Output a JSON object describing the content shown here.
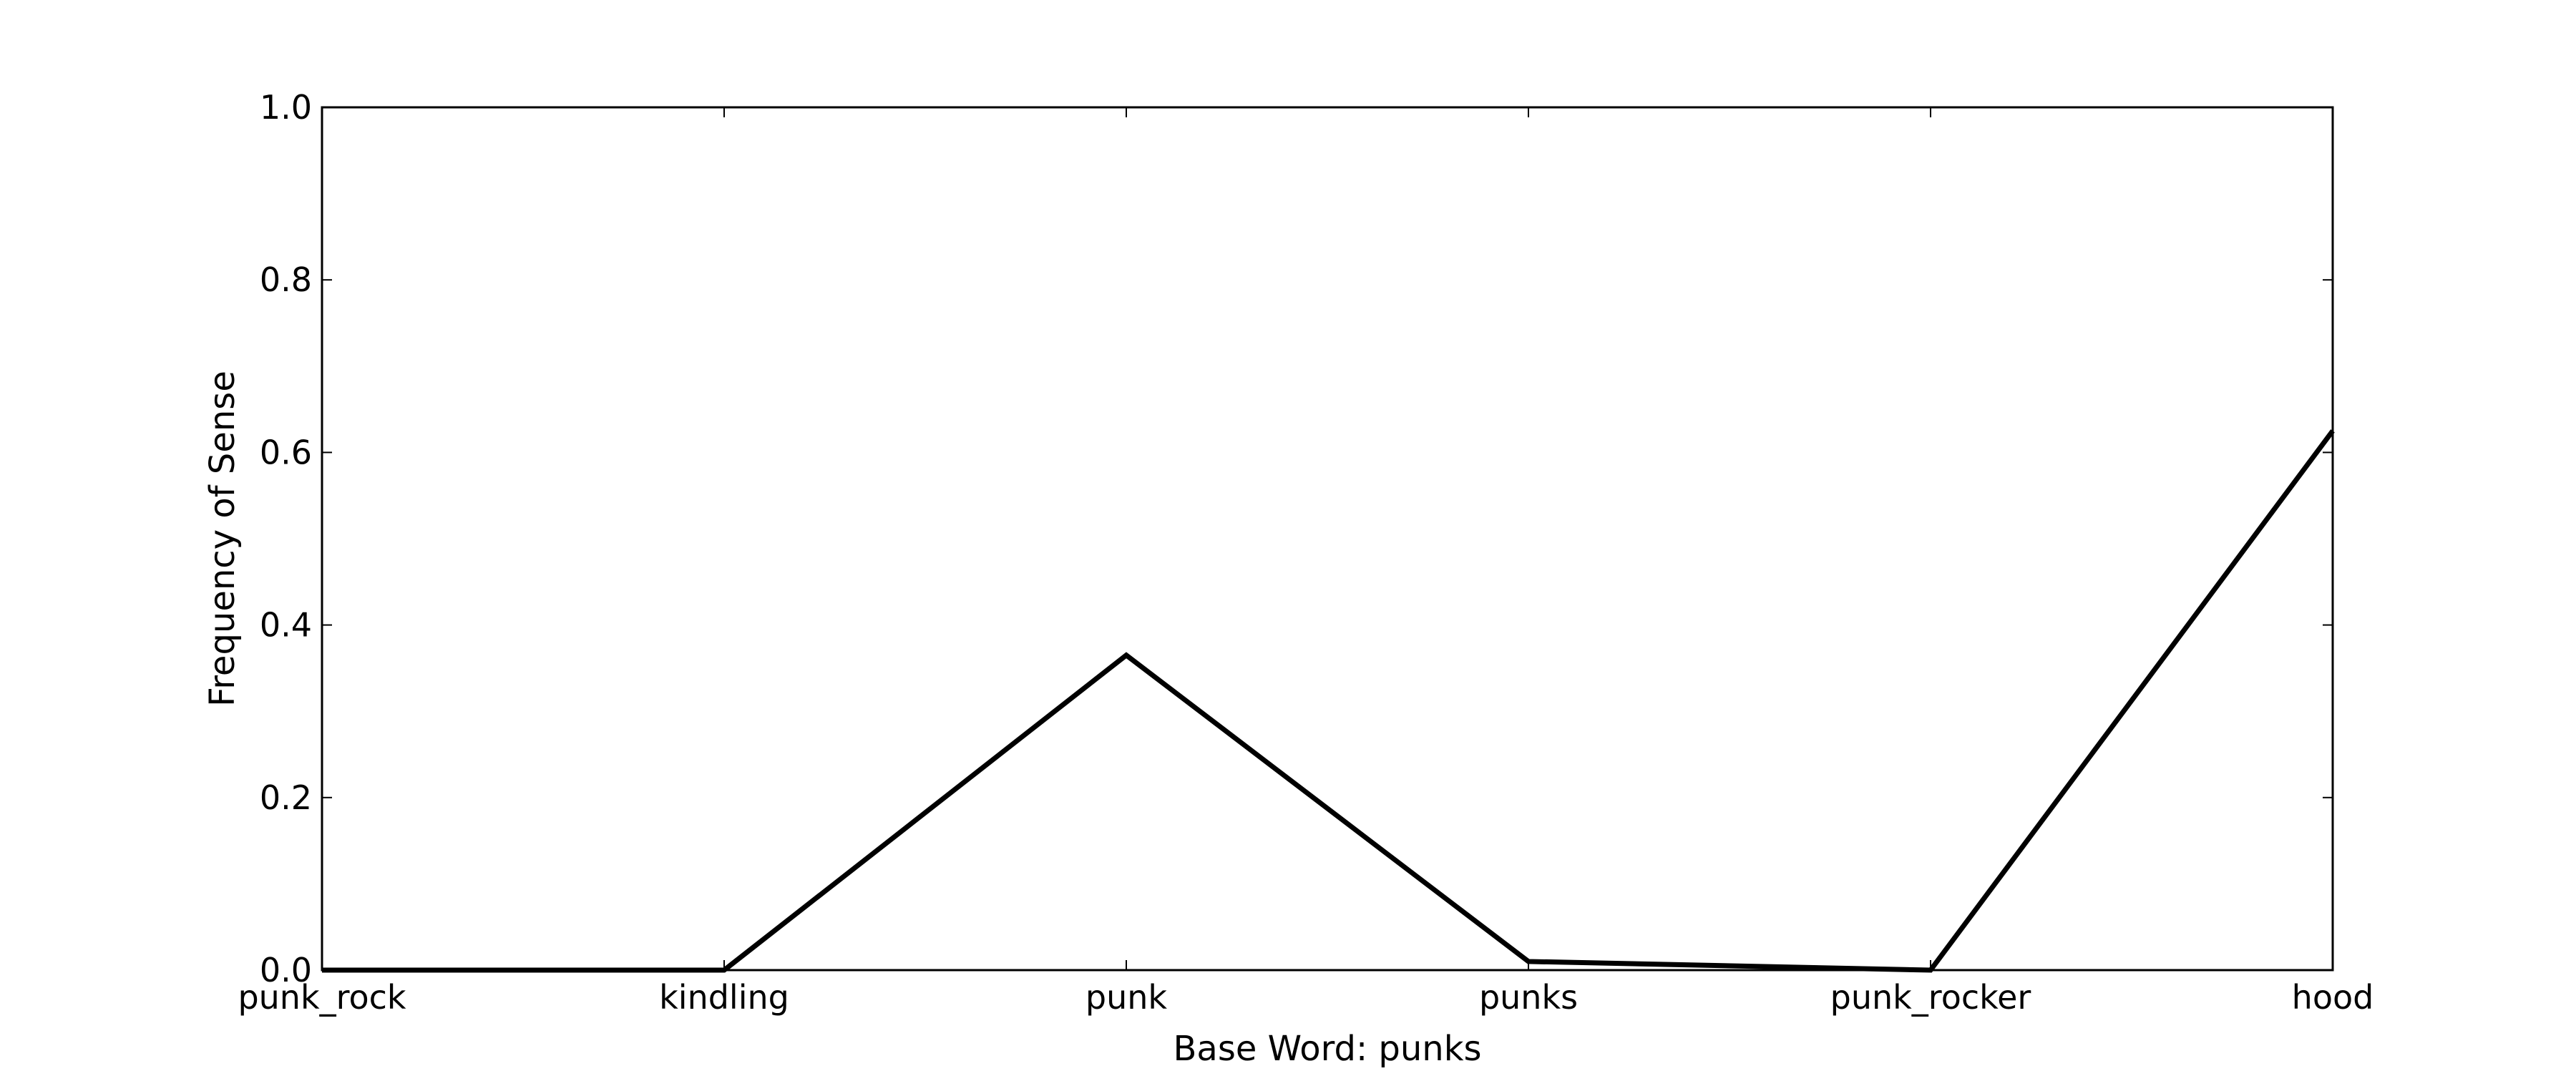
{
  "chart_data": {
    "type": "line",
    "title": "",
    "xlabel": "Base Word: punks",
    "ylabel": "Frequency of Sense",
    "categories": [
      "punk_rock",
      "kindling",
      "punk",
      "punks",
      "punk_rocker",
      "hood"
    ],
    "series": [
      {
        "values": [
          0.0,
          0.0,
          0.365,
          0.01,
          0.0,
          0.625
        ],
        "color": "#000000"
      }
    ],
    "ylim": [
      0.0,
      1.0
    ],
    "yticks": [
      "0.0",
      "0.2",
      "0.4",
      "0.6",
      "0.8",
      "1.0"
    ],
    "grid": false,
    "legend": "none"
  }
}
